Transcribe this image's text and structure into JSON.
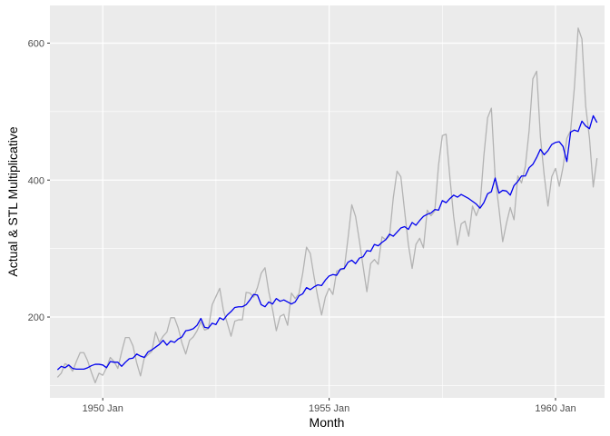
{
  "chart_data": {
    "type": "line",
    "xlabel": "Month",
    "ylabel": "Actual & STL Multiplicative",
    "x_start": "1949 Jan",
    "x_frequency": "monthly",
    "xlim": [
      1948.833,
      1961.083
    ],
    "ylim": [
      82,
      655
    ],
    "x_ticks": [
      {
        "value": 1950.0,
        "label": "1950 Jan"
      },
      {
        "value": 1955.0,
        "label": "1955 Jan"
      },
      {
        "value": 1960.0,
        "label": "1960 Jan"
      }
    ],
    "y_ticks": [
      {
        "value": 200,
        "label": "200"
      },
      {
        "value": 400,
        "label": "400"
      },
      {
        "value": 600,
        "label": "600"
      }
    ],
    "grid": true,
    "legend": "none",
    "series": [
      {
        "color": "#b3b3b3",
        "values": [
          112,
          118,
          132,
          129,
          121,
          135,
          148,
          148,
          136,
          119,
          104,
          118,
          115,
          126,
          141,
          135,
          125,
          149,
          170,
          170,
          158,
          133,
          114,
          140,
          145,
          150,
          178,
          163,
          172,
          178,
          199,
          199,
          184,
          162,
          146,
          166,
          171,
          180,
          193,
          181,
          183,
          218,
          230,
          242,
          209,
          191,
          172,
          194,
          196,
          196,
          236,
          235,
          229,
          243,
          264,
          272,
          237,
          211,
          180,
          201,
          204,
          188,
          235,
          227,
          234,
          264,
          302,
          293,
          259,
          229,
          203,
          229,
          242,
          233,
          267,
          269,
          270,
          315,
          364,
          347,
          312,
          274,
          237,
          278,
          284,
          277,
          317,
          313,
          318,
          374,
          413,
          405,
          355,
          306,
          271,
          306,
          315,
          301,
          356,
          348,
          355,
          422,
          465,
          467,
          404,
          347,
          305,
          336,
          340,
          318,
          362,
          348,
          363,
          435,
          491,
          505,
          404,
          359,
          310,
          337,
          360,
          342,
          406,
          396,
          420,
          472,
          548,
          559,
          463,
          407,
          362,
          405,
          417,
          391,
          419,
          461,
          472,
          535,
          622,
          606,
          508,
          461,
          390,
          432
        ]
      },
      {
        "color": "#0000ee",
        "values": [
          123,
          128,
          126,
          130,
          125,
          124,
          124,
          124,
          126,
          129,
          131,
          131,
          130,
          126,
          135,
          134,
          134,
          128,
          134,
          139,
          140,
          146,
          143,
          141,
          149,
          152,
          156,
          160,
          166,
          159,
          165,
          163,
          168,
          171,
          180,
          181,
          183,
          188,
          198,
          185,
          184,
          191,
          189,
          199,
          196,
          203,
          208,
          214,
          215,
          215,
          218,
          225,
          233,
          232,
          218,
          215,
          222,
          219,
          227,
          223,
          225,
          222,
          219,
          222,
          231,
          234,
          243,
          240,
          244,
          247,
          246,
          254,
          260,
          262,
          261,
          270,
          271,
          280,
          283,
          278,
          286,
          288,
          297,
          296,
          306,
          304,
          309,
          313,
          321,
          318,
          324,
          330,
          332,
          328,
          338,
          334,
          341,
          347,
          350,
          352,
          357,
          356,
          370,
          367,
          373,
          378,
          375,
          379,
          376,
          373,
          369,
          365,
          359,
          367,
          380,
          383,
          403,
          381,
          385,
          384,
          378,
          392,
          398,
          406,
          406,
          418,
          423,
          433,
          445,
          437,
          443,
          452,
          455,
          456,
          449,
          427,
          470,
          473,
          471,
          486,
          479,
          475,
          494,
          484
        ]
      }
    ]
  }
}
